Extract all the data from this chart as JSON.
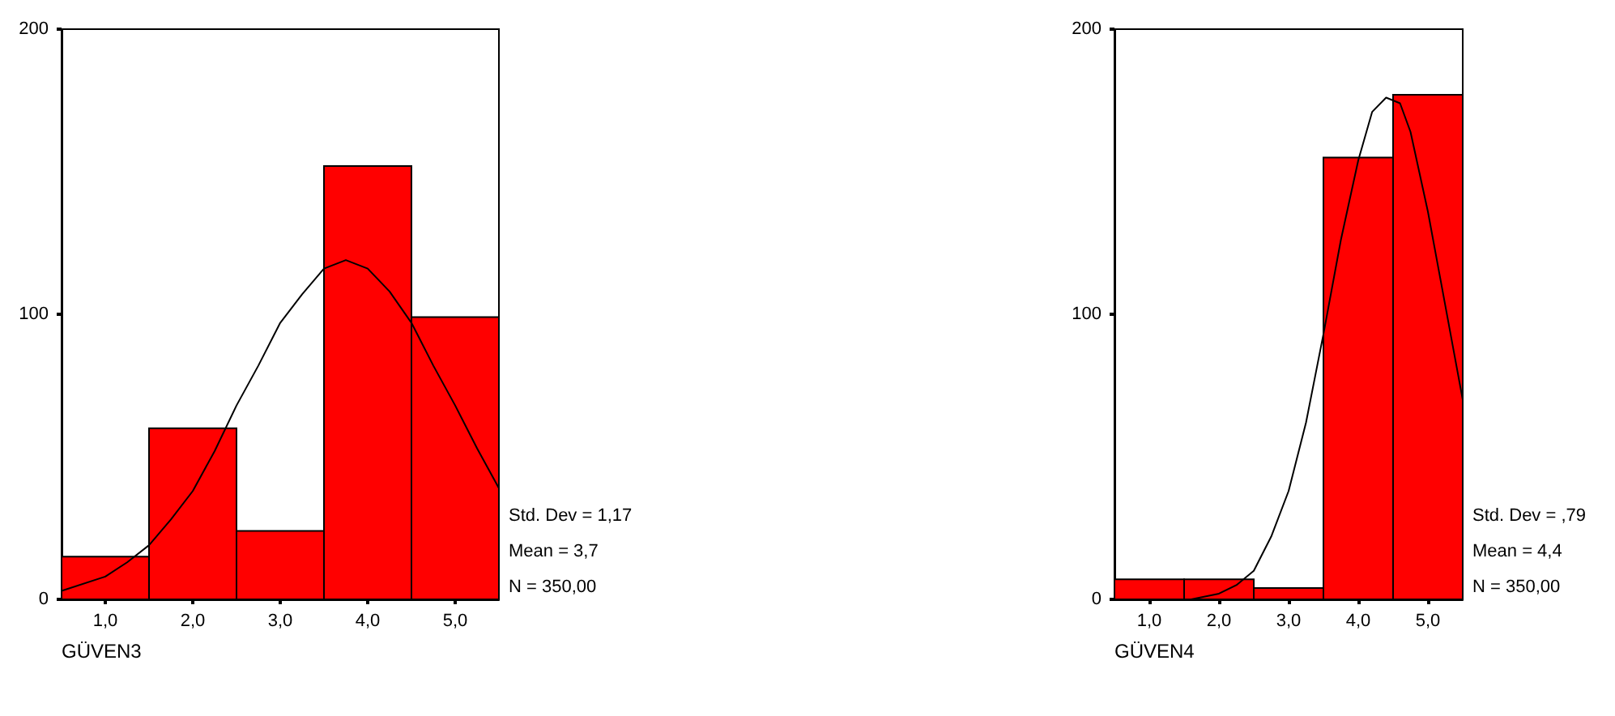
{
  "chart_data": [
    {
      "type": "histogram",
      "xlabel": "GÜVEN3",
      "xlim": [
        0.5,
        5.5
      ],
      "xticks": [
        {
          "value": 1,
          "label": "1,0"
        },
        {
          "value": 2,
          "label": "2,0"
        },
        {
          "value": 3,
          "label": "3,0"
        },
        {
          "value": 4,
          "label": "4,0"
        },
        {
          "value": 5,
          "label": "5,0"
        }
      ],
      "ylim": [
        0,
        200
      ],
      "yticks": [
        0,
        100,
        200
      ],
      "grid": false,
      "annotations": [
        "Std. Dev = 1,17",
        "Mean = 3,7",
        "N = 350,00"
      ],
      "series": [
        {
          "color": "#ff0000",
          "bins": [
            0.5,
            1.5,
            2.5,
            3.5,
            4.5,
            5.5
          ],
          "values": [
            15,
            60,
            24,
            152,
            99
          ]
        },
        {
          "type": "line",
          "color": "#000000",
          "marker": "none",
          "x": [
            0.5,
            1.0,
            1.25,
            1.5,
            1.75,
            2.0,
            2.25,
            2.5,
            2.75,
            3.0,
            3.25,
            3.5,
            3.75,
            4.0,
            4.25,
            4.5,
            4.75,
            5.0,
            5.25,
            5.5
          ],
          "values": [
            3,
            8,
            13,
            19,
            28,
            38,
            52,
            68,
            82,
            97,
            107,
            116,
            119,
            116,
            108,
            97,
            82,
            68,
            53,
            39
          ]
        }
      ]
    },
    {
      "type": "histogram",
      "xlabel": "GÜVEN4",
      "xlim": [
        0.5,
        5.5
      ],
      "xticks": [
        {
          "value": 1,
          "label": "1,0"
        },
        {
          "value": 2,
          "label": "2,0"
        },
        {
          "value": 3,
          "label": "3,0"
        },
        {
          "value": 4,
          "label": "4,0"
        },
        {
          "value": 5,
          "label": "5,0"
        }
      ],
      "ylim": [
        0,
        200
      ],
      "yticks": [
        0,
        100,
        200
      ],
      "grid": false,
      "annotations": [
        "Std. Dev = ,79",
        "Mean = 4,4",
        "N = 350,00"
      ],
      "series": [
        {
          "color": "#ff0000",
          "bins": [
            0.5,
            1.5,
            2.5,
            3.5,
            4.5,
            5.5
          ],
          "values": [
            7,
            7,
            4,
            155,
            177
          ]
        },
        {
          "type": "line",
          "color": "#000000",
          "marker": "none",
          "x": [
            1.6,
            2.0,
            2.25,
            2.5,
            2.75,
            3.0,
            3.25,
            3.5,
            3.75,
            4.0,
            4.2,
            4.4,
            4.6,
            4.75,
            5.0,
            5.25,
            5.5
          ],
          "values": [
            0,
            2,
            5,
            10,
            22,
            38,
            62,
            93,
            126,
            154,
            171,
            176,
            174,
            164,
            136,
            103,
            70
          ]
        }
      ]
    }
  ]
}
